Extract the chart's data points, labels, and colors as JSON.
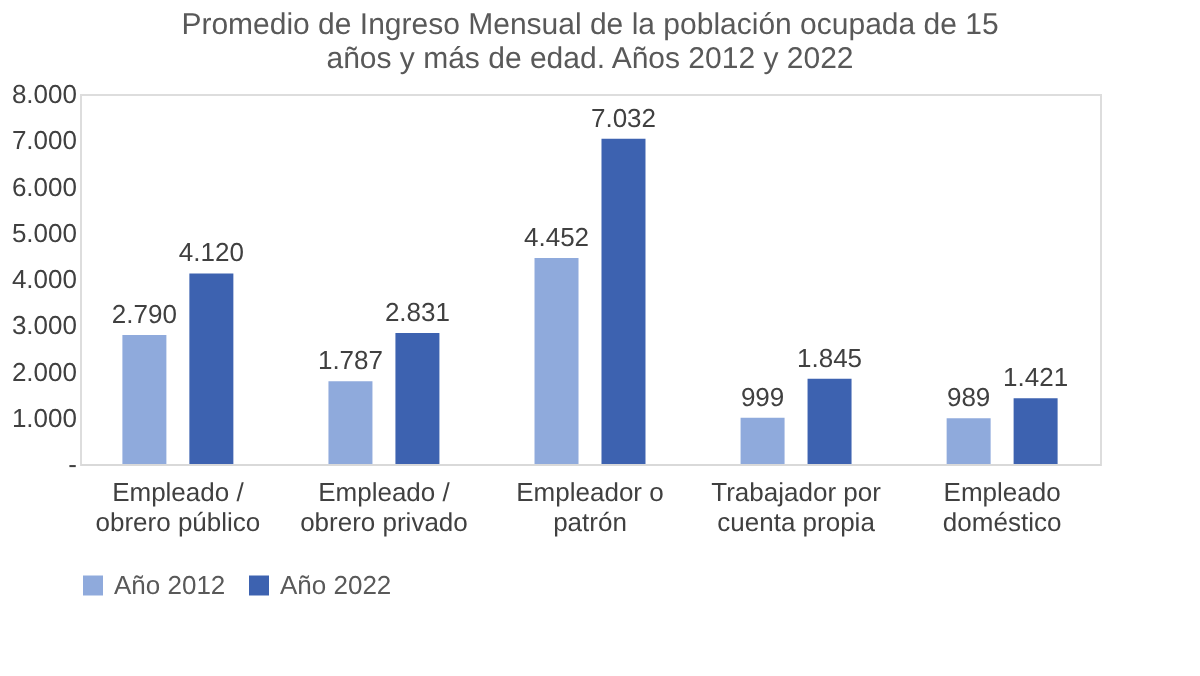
{
  "chart_data": {
    "type": "bar",
    "title": "Promedio de Ingreso Mensual de la población ocupada de 15 años y más de edad. Años 2012 y 2022",
    "categories": [
      "Empleado / obrero público",
      "Empleado / obrero privado",
      "Empleador o patrón",
      "Trabajador por cuenta propia",
      "Empleado doméstico"
    ],
    "series": [
      {
        "name": "Año 2012",
        "color": "#8faadc",
        "values": [
          2790,
          1787,
          4452,
          999,
          989
        ],
        "value_labels": [
          "2.790",
          "1.787",
          "4.452",
          "999",
          "989"
        ]
      },
      {
        "name": "Año 2022",
        "color": "#3d62b0",
        "values": [
          4120,
          2831,
          7032,
          1845,
          1421
        ],
        "value_labels": [
          "4.120",
          "2.831",
          "7.032",
          "1.845",
          "1.421"
        ]
      }
    ],
    "ylim": [
      0,
      8000
    ],
    "yticks": [
      {
        "value": 0,
        "label": "-"
      },
      {
        "value": 1000,
        "label": "1.000"
      },
      {
        "value": 2000,
        "label": "2.000"
      },
      {
        "value": 3000,
        "label": "3.000"
      },
      {
        "value": 4000,
        "label": "4.000"
      },
      {
        "value": 5000,
        "label": "5.000"
      },
      {
        "value": 6000,
        "label": "6.000"
      },
      {
        "value": 7000,
        "label": "7.000"
      },
      {
        "value": 8000,
        "label": "8.000"
      }
    ],
    "grid": false,
    "legend": "bottom"
  }
}
